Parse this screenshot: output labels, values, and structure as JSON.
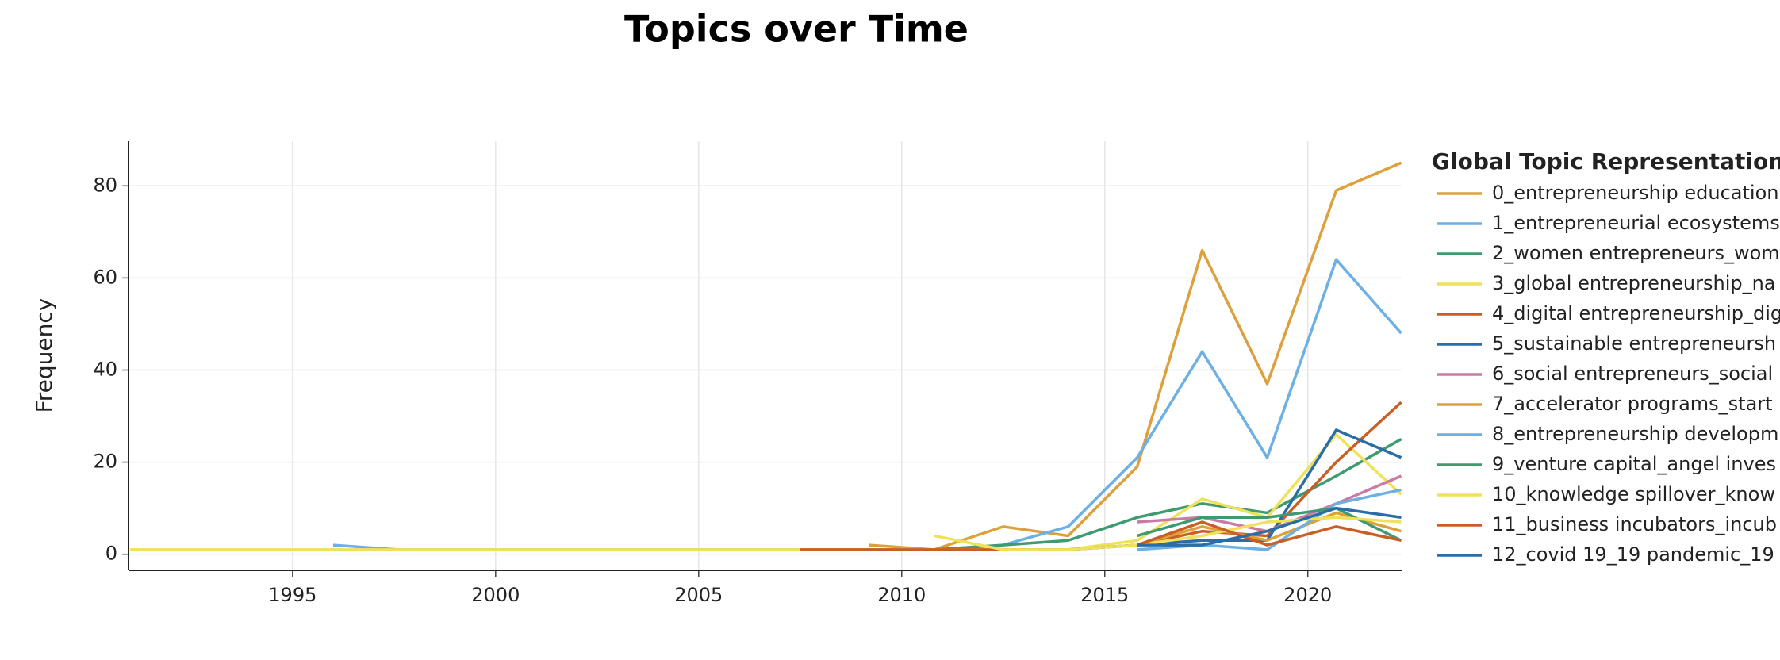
{
  "chart_data": {
    "type": "line",
    "title": "Topics over Time",
    "y_label": "Frequency",
    "legend_title": "Global Topic Representation",
    "legend_position": "right",
    "grid": true,
    "x": [
      1991.0,
      1996.0,
      1997.6,
      2007.5,
      2009.2,
      2010.8,
      2012.5,
      2014.1,
      2015.8,
      2017.4,
      2019.0,
      2020.7,
      2022.3
    ],
    "xlim": [
      1990.96,
      2022.33
    ],
    "xticks": [
      1995,
      2000,
      2005,
      2010,
      2015,
      2020
    ],
    "ylim": [
      -3.5,
      89.7
    ],
    "yticks": [
      0,
      20,
      40,
      60,
      80
    ],
    "series": [
      {
        "name": "0_entrepreneurship education",
        "color": "#dca13d",
        "values": [
          null,
          null,
          null,
          null,
          2,
          1,
          6,
          4,
          19,
          66,
          37,
          79,
          85
        ]
      },
      {
        "name": "1_entrepreneurial ecosystems",
        "color": "#6cb0e4",
        "values": [
          null,
          2,
          1,
          1,
          1,
          1,
          2,
          6,
          21,
          44,
          21,
          64,
          48
        ]
      },
      {
        "name": "2_women entrepreneurs_wom",
        "color": "#3f9a70",
        "values": [
          null,
          null,
          null,
          null,
          null,
          1,
          2,
          3,
          8,
          11,
          9,
          17,
          25
        ]
      },
      {
        "name": "3_global entrepreneurship_na",
        "color": "#efe15a",
        "values": [
          1,
          1,
          1,
          1,
          1,
          1,
          1,
          1,
          3,
          12,
          8,
          26,
          13
        ]
      },
      {
        "name": "4_digital entrepreneurship_dig",
        "color": "#ca5e24",
        "values": [
          null,
          null,
          null,
          1,
          1,
          1,
          1,
          1,
          2,
          5,
          4,
          20,
          33
        ]
      },
      {
        "name": "5_sustainable entrepreneursh",
        "color": "#2a6ea8",
        "values": [
          null,
          null,
          null,
          null,
          null,
          null,
          null,
          1,
          2,
          3,
          3,
          27,
          21
        ]
      },
      {
        "name": "6_social entrepreneurs_social",
        "color": "#c97ba6",
        "values": [
          null,
          null,
          null,
          null,
          null,
          null,
          null,
          null,
          7,
          8,
          5,
          11,
          17
        ]
      },
      {
        "name": "7_accelerator programs_start",
        "color": "#dca13d",
        "values": [
          null,
          null,
          null,
          null,
          null,
          null,
          null,
          null,
          2,
          6,
          3,
          9,
          5
        ]
      },
      {
        "name": "8_entrepreneurship developm",
        "color": "#6cb0e4",
        "values": [
          null,
          null,
          null,
          null,
          null,
          null,
          null,
          null,
          1,
          2,
          1,
          11,
          14
        ]
      },
      {
        "name": "9_venture capital_angel inves",
        "color": "#3f9a70",
        "values": [
          null,
          null,
          null,
          null,
          null,
          null,
          null,
          null,
          4,
          8,
          8,
          10,
          3
        ]
      },
      {
        "name": "10_knowledge spillover_know",
        "color": "#efe15a",
        "values": [
          null,
          null,
          null,
          null,
          null,
          4,
          1,
          1,
          2,
          4,
          7,
          8,
          7
        ]
      },
      {
        "name": "11_business incubators_incub",
        "color": "#ca5e24",
        "values": [
          null,
          null,
          null,
          null,
          null,
          null,
          null,
          null,
          2,
          7,
          2,
          6,
          3
        ]
      },
      {
        "name": "12_covid 19_19 pandemic_19",
        "color": "#2a6ea8",
        "values": [
          null,
          null,
          null,
          null,
          null,
          null,
          null,
          null,
          2,
          2,
          5,
          10,
          8
        ]
      }
    ]
  }
}
